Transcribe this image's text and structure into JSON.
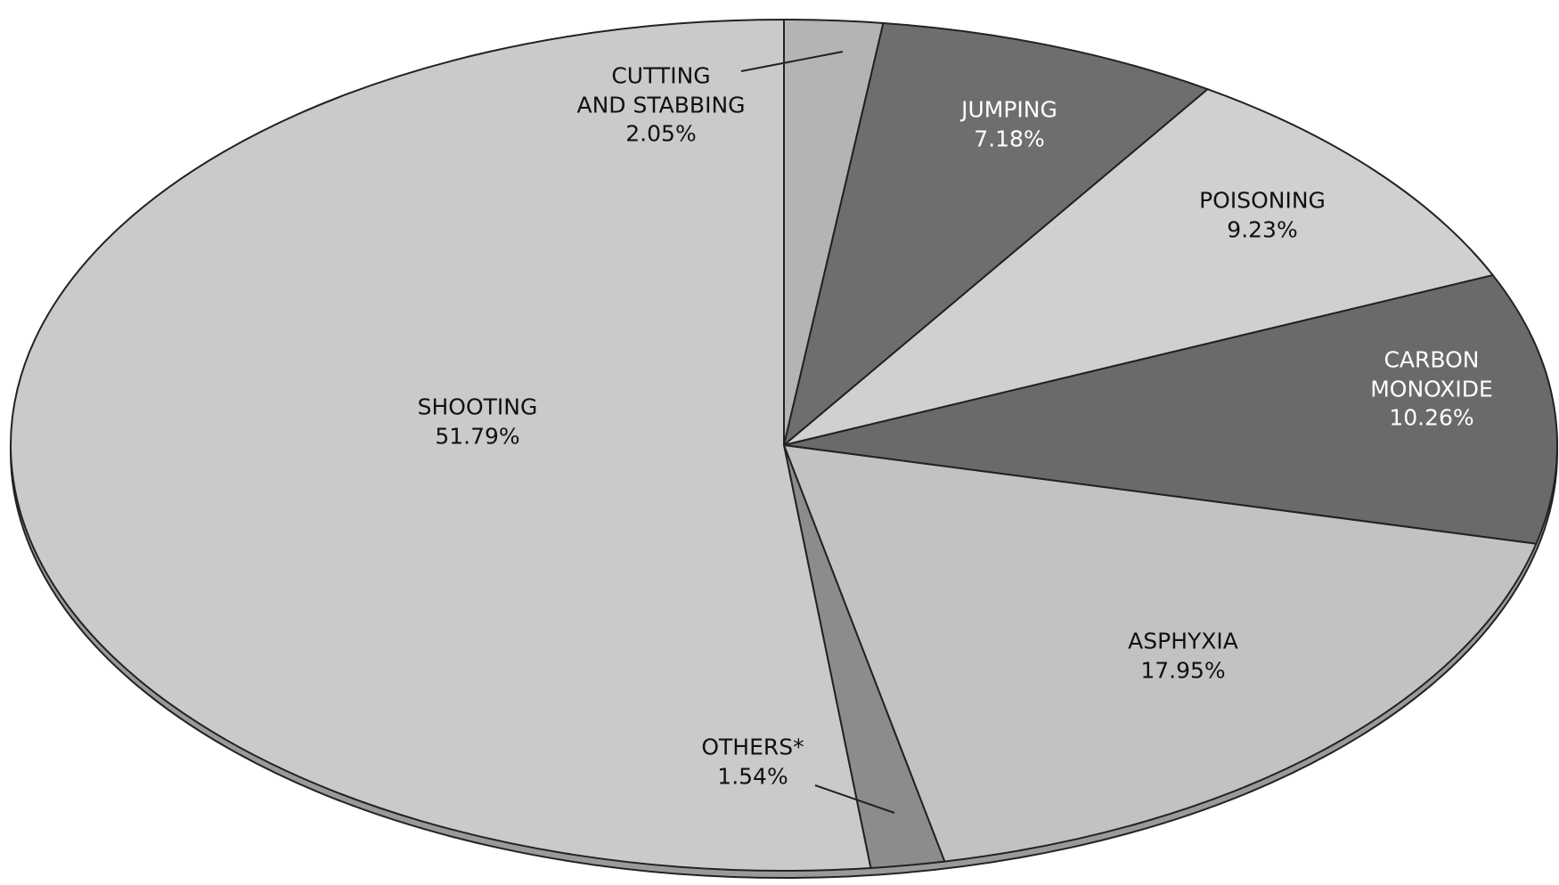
{
  "chart_data": {
    "type": "pie",
    "categories": [
      "CUTTING\nAND STABBING",
      "JUMPING",
      "POISONING",
      "CARBON\nMONOXIDE",
      "ASPHYXIA",
      "OTHERS*",
      "SHOOTING"
    ],
    "values": [
      2.05,
      7.18,
      9.23,
      10.26,
      17.95,
      1.54,
      51.79
    ],
    "value_labels": [
      "2.05%",
      "7.18%",
      "9.23%",
      "10.26%",
      "17.95%",
      "1.54%",
      "51.79%"
    ],
    "colors": [
      "#b4b4b4",
      "#6e6e6e",
      "#d0d0d0",
      "#6a6a6a",
      "#c2c2c2",
      "#8c8c8c",
      "#cacaca"
    ]
  }
}
